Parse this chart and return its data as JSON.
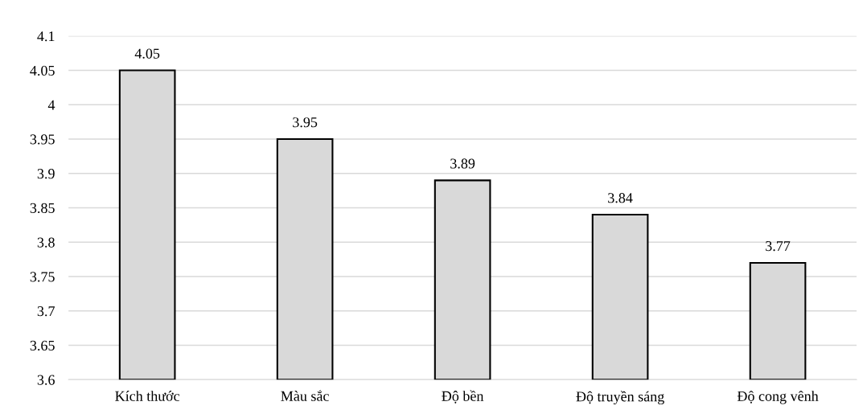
{
  "chart_data": {
    "type": "bar",
    "categories": [
      "Kích thước",
      "Màu sắc",
      "Độ bền",
      "Độ truyền sáng",
      "Độ cong vênh"
    ],
    "values": [
      4.05,
      3.95,
      3.89,
      3.84,
      3.77
    ],
    "color": "#d9d9d9",
    "ylim": [
      3.6,
      4.1
    ],
    "yticks": [
      {
        "value": 3.6,
        "label": "3.6"
      },
      {
        "value": 3.65,
        "label": "3.65"
      },
      {
        "value": 3.7,
        "label": "3.7"
      },
      {
        "value": 3.75,
        "label": "3.75"
      },
      {
        "value": 3.8,
        "label": "3.8"
      },
      {
        "value": 3.85,
        "label": "3.85"
      },
      {
        "value": 3.9,
        "label": "3.9"
      },
      {
        "value": 3.95,
        "label": "3.95"
      },
      {
        "value": 4,
        "label": "4"
      },
      {
        "value": 4.05,
        "label": "4.05"
      },
      {
        "value": 4.1,
        "label": "4.1"
      }
    ],
    "grid": "y",
    "data_labels": true
  }
}
